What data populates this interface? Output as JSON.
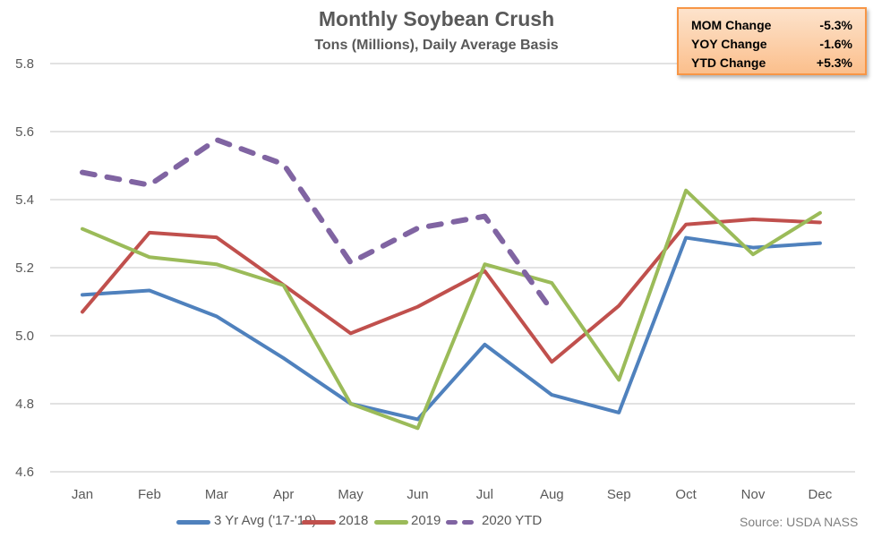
{
  "chart_data": {
    "type": "line",
    "title": "Monthly Soybean Crush",
    "subtitle": "Tons (Millions), Daily Average Basis",
    "xlabel": "",
    "ylabel": "",
    "categories": [
      "Jan",
      "Feb",
      "Mar",
      "Apr",
      "May",
      "Jun",
      "Jul",
      "Aug",
      "Sep",
      "Oct",
      "Nov",
      "Dec"
    ],
    "ylim": [
      4.6,
      5.8
    ],
    "yticks": [
      "4.6",
      "4.8",
      "5.0",
      "5.2",
      "5.4",
      "5.6",
      "5.8"
    ],
    "grid": true,
    "legend_position": "bottom",
    "series": [
      {
        "name": "3 Yr Avg ('17-'19)",
        "color": "#4f81bd",
        "dashed": false,
        "values": [
          5.12,
          5.133,
          5.057,
          4.934,
          4.8,
          4.754,
          4.974,
          4.826,
          4.774,
          5.288,
          5.259,
          5.272
        ]
      },
      {
        "name": "2018",
        "color": "#c0504d",
        "dashed": false,
        "values": [
          5.07,
          5.303,
          5.289,
          5.149,
          5.007,
          5.085,
          5.19,
          4.923,
          5.088,
          5.327,
          5.342,
          5.333
        ]
      },
      {
        "name": "2019",
        "color": "#9bbb59",
        "dashed": false,
        "values": [
          5.314,
          5.231,
          5.21,
          5.148,
          4.8,
          4.728,
          5.21,
          5.155,
          4.87,
          5.427,
          5.239,
          5.361
        ]
      },
      {
        "name": "2020 YTD",
        "color": "#8064a2",
        "dashed": true,
        "values": [
          5.48,
          5.443,
          5.576,
          5.504,
          5.215,
          5.316,
          5.351,
          5.074,
          null,
          null,
          null,
          null
        ]
      }
    ],
    "annotations": {
      "source": "Source: USDA NASS",
      "summary": [
        {
          "label": "MOM Change",
          "value": "-5.3%"
        },
        {
          "label": "YOY Change",
          "value": "-1.6%"
        },
        {
          "label": "YTD Change",
          "value": "+5.3%"
        }
      ]
    }
  }
}
